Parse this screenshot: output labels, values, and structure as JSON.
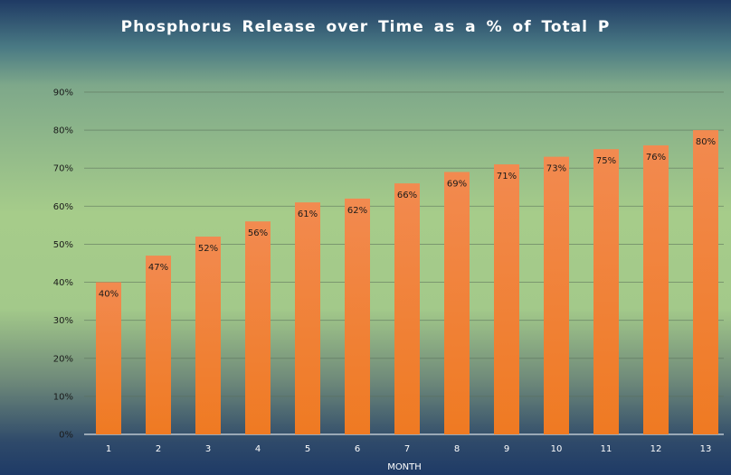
{
  "chart_data": {
    "type": "bar",
    "title": "Phosphorus  Release over Time as a % of Total P",
    "xlabel": "MONTH",
    "ylabel": "",
    "categories": [
      "1",
      "2",
      "3",
      "4",
      "5",
      "6",
      "7",
      "8",
      "9",
      "10",
      "11",
      "12",
      "13"
    ],
    "values": [
      40,
      47,
      52,
      56,
      61,
      62,
      66,
      69,
      71,
      73,
      75,
      76,
      80
    ],
    "data_labels": [
      "40%",
      "47%",
      "52%",
      "56%",
      "61%",
      "62%",
      "66%",
      "69%",
      "71%",
      "73%",
      "75%",
      "76%",
      "80%"
    ],
    "y_ticks": [
      "0%",
      "10%",
      "20%",
      "30%",
      "40%",
      "50%",
      "60%",
      "70%",
      "80%",
      "90%"
    ],
    "ylim": [
      0,
      90
    ],
    "grid": true,
    "legend": "none",
    "bar_color_top": "#f28a50",
    "bar_color_bottom": "#ef7a22"
  }
}
